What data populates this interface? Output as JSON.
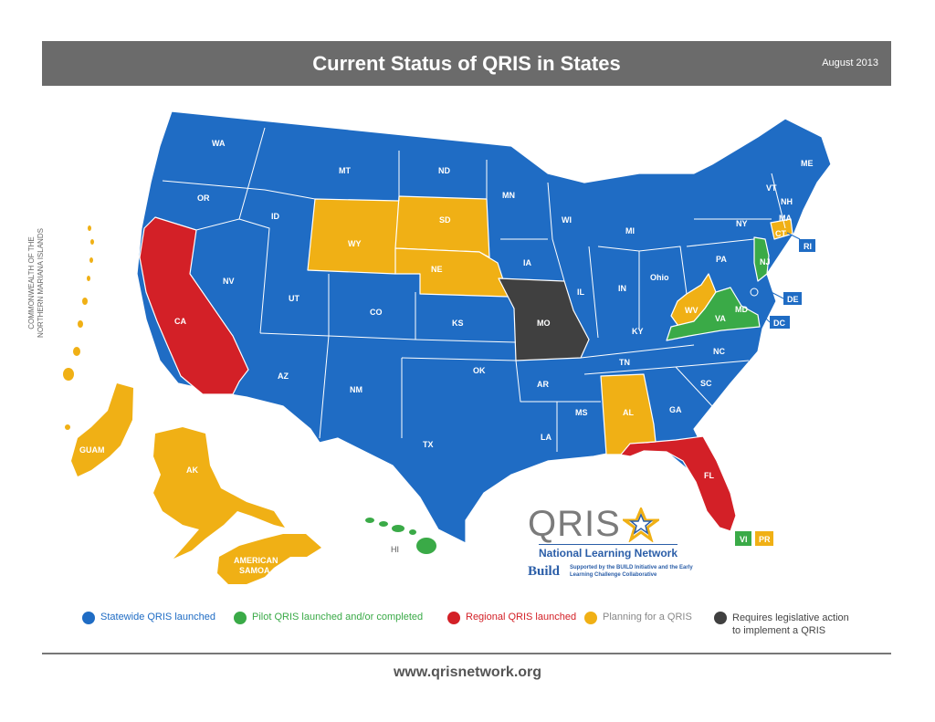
{
  "header": {
    "title": "Current Status of QRIS in States",
    "date": "August 2013"
  },
  "colors": {
    "statewide": "#1f6cc4",
    "pilot": "#3aaa47",
    "regional": "#d32027",
    "planning": "#f0b015",
    "legislative": "#404040"
  },
  "territory_labels": {
    "cnmi_line1": "COMMONWEALTH OF THE",
    "cnmi_line2": "NORTHERN MARIANA ISLANDS",
    "guam": "GUAM",
    "alaska": "AK",
    "samoa_line1": "AMERICAN",
    "samoa_line2": "SAMOA",
    "hawaii": "HI",
    "vi": "VI",
    "pr": "PR"
  },
  "states": {
    "WA": "WA",
    "OR": "OR",
    "CA": "CA",
    "NV": "NV",
    "ID": "ID",
    "MT": "MT",
    "WY": "WY",
    "UT": "UT",
    "AZ": "AZ",
    "CO": "CO",
    "NM": "NM",
    "ND": "ND",
    "SD": "SD",
    "NE": "NE",
    "KS": "KS",
    "OK": "OK",
    "TX": "TX",
    "MN": "MN",
    "IA": "IA",
    "MO": "MO",
    "AR": "AR",
    "LA": "LA",
    "WI": "WI",
    "IL": "IL",
    "MS": "MS",
    "MI": "MI",
    "IN": "IN",
    "KY": "KY",
    "TN": "TN",
    "AL": "AL",
    "GA": "GA",
    "FL": "FL",
    "SC": "SC",
    "NC": "NC",
    "OH": "Ohio",
    "WV": "WV",
    "VA": "VA",
    "PA": "PA",
    "NY": "NY",
    "VT": "VT",
    "NH": "NH",
    "ME": "ME",
    "MA": "MA",
    "CT": "CT",
    "RI": "RI",
    "NJ": "NJ",
    "DE": "DE",
    "MD": "MD",
    "DC": "DC"
  },
  "logo": {
    "name": "QRIS",
    "subtitle": "National Learning Network",
    "build": "Build",
    "supported": "Supported by the BUILD Initiative and the Early Learning Challenge Collaborative"
  },
  "legend": [
    {
      "label": "Statewide QRIS launched",
      "color": "#1f6cc4"
    },
    {
      "label": "Pilot QRIS launched and/or completed",
      "color": "#3aaa47"
    },
    {
      "label": "Regional QRIS launched",
      "color": "#d32027"
    },
    {
      "label": "Planning for a QRIS",
      "color": "#f0b015"
    },
    {
      "label_line1": "Requires legislative action",
      "label_line2": "to implement a QRIS",
      "color": "#404040"
    }
  ],
  "footer": {
    "url": "www.qrisnetwork.org"
  }
}
